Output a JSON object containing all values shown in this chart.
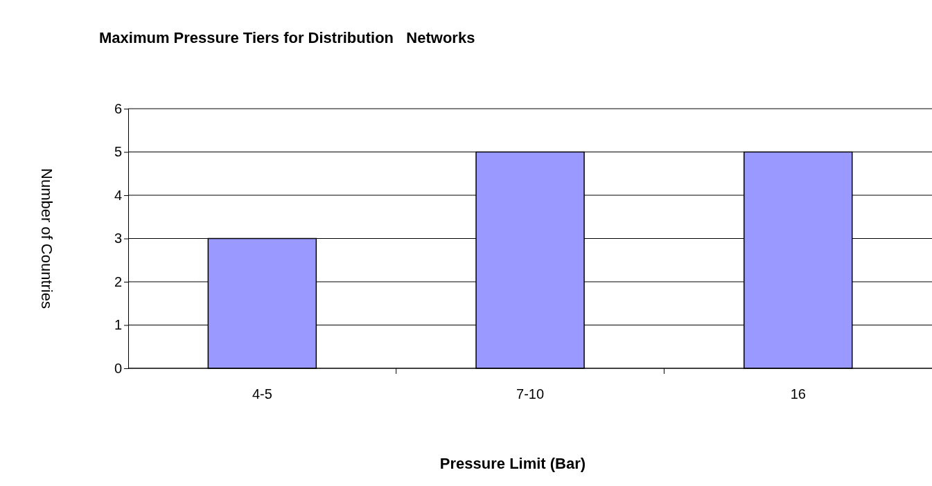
{
  "chart_data": {
    "type": "bar",
    "title": "Maximum Pressure Tiers for Distribution   Networks",
    "xlabel": "Pressure Limit (Bar)",
    "ylabel": "Number of Countries",
    "categories": [
      "4-5",
      "7-10",
      "16"
    ],
    "values": [
      3,
      5,
      5
    ],
    "color": "#9999ff",
    "ylim": [
      0,
      6
    ],
    "yticks": [
      0,
      1,
      2,
      3,
      4,
      5,
      6
    ],
    "grid": "y"
  }
}
